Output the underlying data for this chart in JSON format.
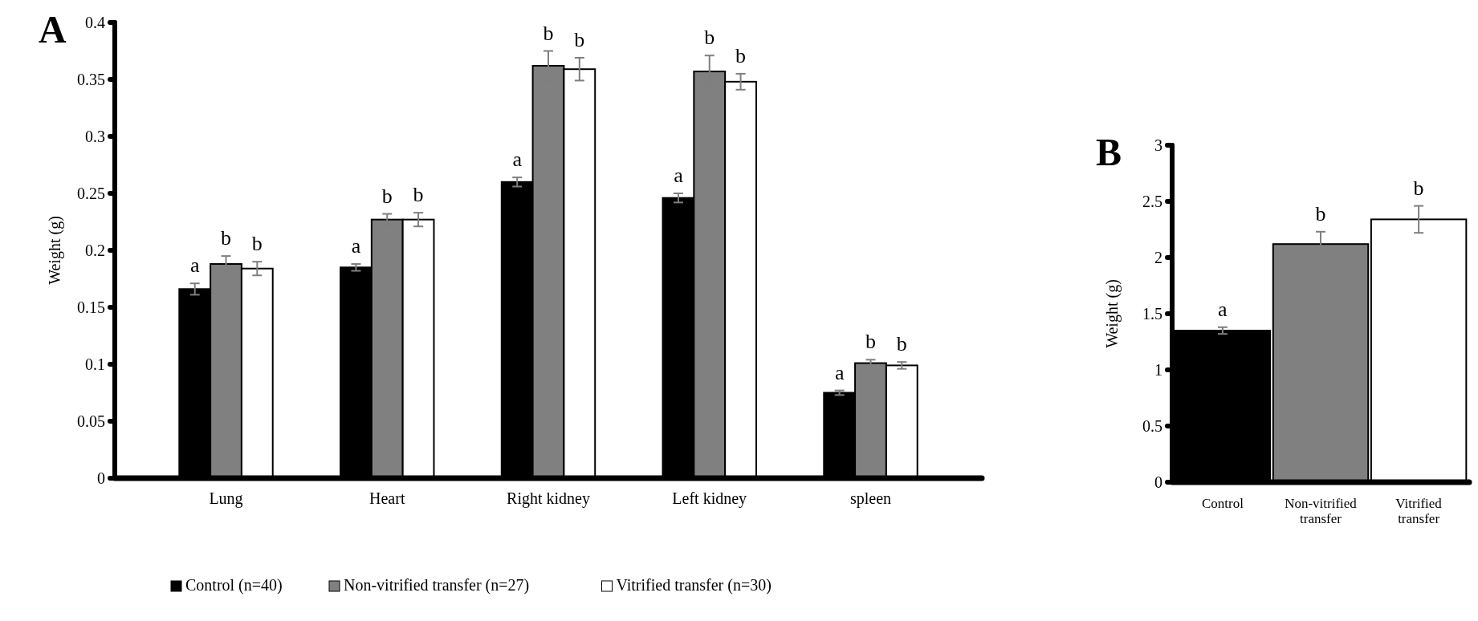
{
  "chart_data": [
    {
      "type": "bar",
      "title": "A",
      "ylabel": "Weight (g)",
      "categories": [
        "Lung",
        "Heart",
        "Right kidney",
        "Left kidney",
        "spleen"
      ],
      "ylim": [
        0,
        0.4
      ],
      "yticks": [
        0,
        0.05,
        0.1,
        0.15,
        0.2,
        0.25,
        0.3,
        0.35,
        0.4
      ],
      "grid": false,
      "legend": "bottom",
      "series": [
        {
          "name": "Control (n=40)",
          "color": "#000000",
          "values": [
            0.166,
            0.185,
            0.26,
            0.246,
            0.075
          ],
          "errors": [
            0.005,
            0.003,
            0.004,
            0.004,
            0.002
          ],
          "value_labels": [
            "a",
            "a",
            "a",
            "a",
            "a"
          ]
        },
        {
          "name": "Non-vitrified transfer (n=27)",
          "color": "#808080",
          "values": [
            0.188,
            0.227,
            0.362,
            0.357,
            0.101
          ],
          "errors": [
            0.007,
            0.005,
            0.013,
            0.014,
            0.003
          ],
          "value_labels": [
            "b",
            "b",
            "b",
            "b",
            "b"
          ]
        },
        {
          "name": "Vitrified transfer (n=30)",
          "color": "#ffffff",
          "values": [
            0.184,
            0.227,
            0.359,
            0.348,
            0.099
          ],
          "errors": [
            0.006,
            0.006,
            0.01,
            0.007,
            0.003
          ],
          "value_labels": [
            "b",
            "b",
            "b",
            "b",
            "b"
          ]
        }
      ]
    },
    {
      "type": "bar",
      "title": "B",
      "ylabel": "Weight (g)",
      "categories": [
        "Control",
        "Non-vitrified transfer",
        "Vitrified transfer"
      ],
      "ylim": [
        0,
        3
      ],
      "yticks": [
        0,
        0.5,
        1,
        1.5,
        2,
        2.5,
        3
      ],
      "grid": false,
      "legend": false,
      "values": [
        1.35,
        2.12,
        2.34
      ],
      "colors": [
        "#000000",
        "#808080",
        "#ffffff"
      ],
      "errors": [
        0.03,
        0.11,
        0.12
      ],
      "value_labels": [
        "a",
        "b",
        "b"
      ]
    }
  ]
}
